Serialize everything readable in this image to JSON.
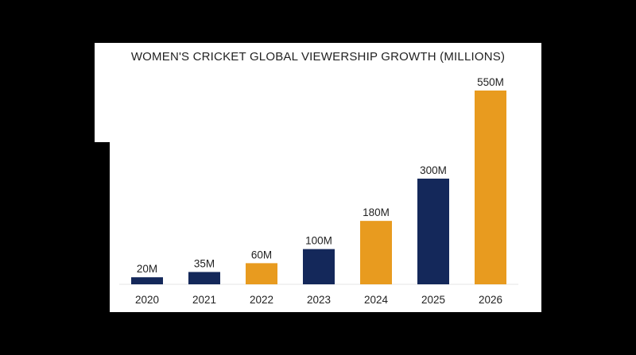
{
  "chart_data": {
    "type": "bar",
    "title": "WOMEN'S CRICKET GLOBAL VIEWERSHIP GROWTH (MILLIONS)",
    "xlabel": "",
    "ylabel": "",
    "categories": [
      "2020",
      "2021",
      "2022",
      "2023",
      "2024",
      "2025",
      "2026"
    ],
    "values": [
      20,
      35,
      60,
      100,
      180,
      300,
      550
    ],
    "data_labels": [
      "20M",
      "35M",
      "60M",
      "100M",
      "180M",
      "300M",
      "550M"
    ],
    "colors": [
      "#14285a",
      "#14285a",
      "#e89b1f",
      "#14285a",
      "#e89b1f",
      "#14285a",
      "#e89b1f"
    ],
    "ylim": [
      0,
      550
    ],
    "grid": false,
    "legend": "none"
  }
}
